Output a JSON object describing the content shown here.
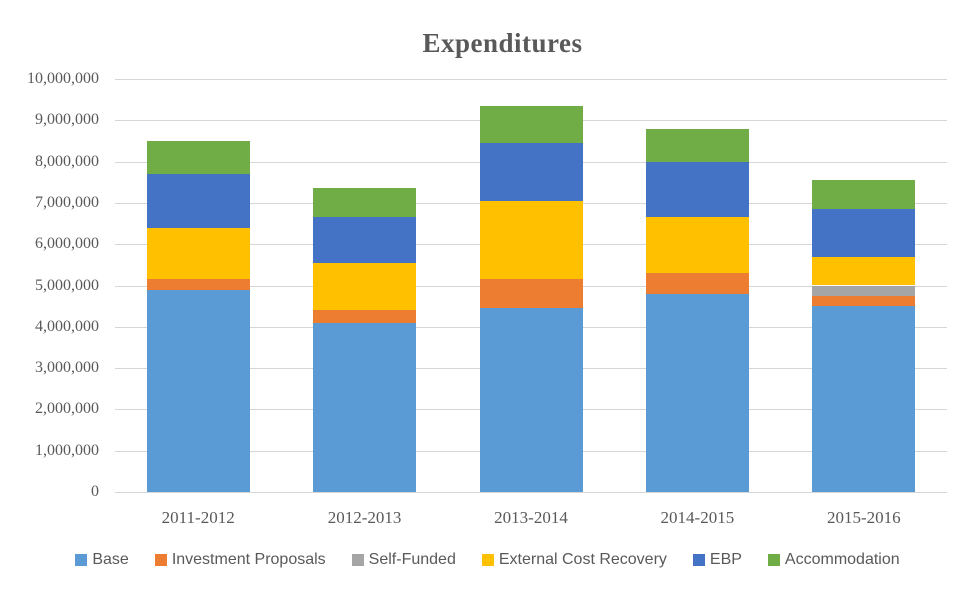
{
  "chart_data": {
    "type": "bar",
    "stacked": true,
    "title": "Expenditures",
    "categories": [
      "2011-2012",
      "2012-2013",
      "2013-2014",
      "2014-2015",
      "2015-2016"
    ],
    "series": [
      {
        "name": "Base",
        "color": "#5B9BD5",
        "values": [
          4900000,
          4100000,
          4450000,
          4800000,
          4500000
        ]
      },
      {
        "name": "Investment Proposals",
        "color": "#ED7D31",
        "values": [
          250000,
          300000,
          700000,
          500000,
          250000
        ]
      },
      {
        "name": "Self-Funded",
        "color": "#A5A5A5",
        "values": [
          0,
          0,
          0,
          0,
          250000
        ]
      },
      {
        "name": "External Cost Recovery",
        "color": "#FFC000",
        "values": [
          1250000,
          1150000,
          1900000,
          1350000,
          700000
        ]
      },
      {
        "name": "EBP",
        "color": "#4472C4",
        "values": [
          1300000,
          1100000,
          1400000,
          1350000,
          1150000
        ]
      },
      {
        "name": "Accommodation",
        "color": "#70AD47",
        "values": [
          800000,
          700000,
          900000,
          800000,
          700000
        ]
      }
    ],
    "totals": [
      8500000,
      7350000,
      9350000,
      8800000,
      7550000
    ],
    "ylim": [
      0,
      10000000
    ],
    "ytick_step": 1000000,
    "ytick_labels": [
      "0",
      "1,000,000",
      "2,000,000",
      "3,000,000",
      "4,000,000",
      "5,000,000",
      "6,000,000",
      "7,000,000",
      "8,000,000",
      "9,000,000",
      "10,000,000"
    ],
    "grid": true,
    "legend_position": "bottom"
  },
  "style": {
    "background": "#FFFFFF",
    "text_color": "#595959",
    "gridline_color": "#D6D6D6"
  }
}
